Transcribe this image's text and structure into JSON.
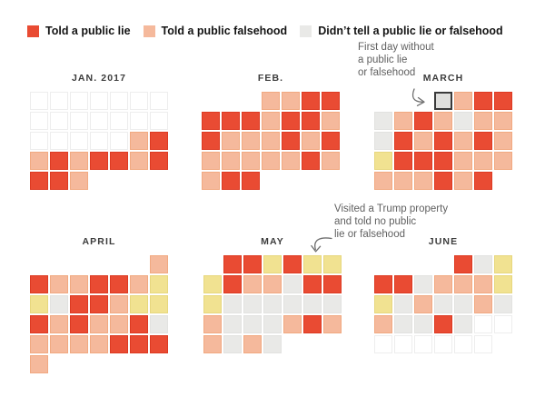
{
  "legend": {
    "items": [
      {
        "code": "L",
        "label": "Told a public lie"
      },
      {
        "code": "F",
        "label": "Told a public falsehood"
      },
      {
        "code": "N",
        "label": "Didn’t tell a public lie or falsehood"
      }
    ]
  },
  "annotations": {
    "march": {
      "lines": [
        "First day without",
        "a public lie",
        "or falsehood"
      ]
    },
    "may": {
      "lines": [
        "Visited a Trump property",
        "and told no public",
        "lie or falsehood"
      ]
    }
  },
  "colors": {
    "lie": "#e94b33",
    "lie_border": "#dd3a22",
    "falsehood": "#f5b99c",
    "falsehood_border": "#f1a981",
    "none": "#e9e9e7",
    "none_border": "#e2e2e0",
    "property": "#f1e291",
    "property_border": "#e7d77e",
    "empty": "#ffffff",
    "empty_border": "#ededed",
    "highlight_fill": "#dfdfdd",
    "highlight_border": "#3a3a3a"
  },
  "chart_data": {
    "type": "heatmap",
    "subtype": "calendar",
    "week_columns": "Sunday through Saturday",
    "cell_codes": {
      "L": "Told a public lie",
      "F": "Told a public falsehood",
      "N": "Didn’t tell a public lie or falsehood",
      "P": "Visited a Trump property and told no public lie or falsehood",
      "H": "Highlighted day: first day without a public lie or falsehood",
      "E": "Day shown with empty cell (outside tracked period)",
      "X": "No day in this calendar position"
    },
    "months": [
      {
        "id": "jan",
        "label": "JAN. 2017",
        "rows": [
          "EEEEEEE",
          "EEEEEEE",
          "EEEEEFL",
          "FLFLLFL",
          "LLFXXXX"
        ]
      },
      {
        "id": "feb",
        "label": "FEB.",
        "rows": [
          "XXXFFLL",
          "LLLFLLF",
          "LFFFLFL",
          "FFFFFLF",
          "FLLXXXX"
        ]
      },
      {
        "id": "mar",
        "label": "MARCH",
        "rows": [
          "XXXHFLL",
          "NFLFNFF",
          "NLFLFLF",
          "PLLLFFF",
          "FFFLFLX"
        ]
      },
      {
        "id": "apr",
        "label": "APRIL",
        "rows": [
          "XXXXXXF",
          "LFFLLFP",
          "PNLLFPP",
          "LFLFFLN",
          "FFFFLLL",
          "FXXXXXX"
        ]
      },
      {
        "id": "may",
        "label": "MAY",
        "rows": [
          "XLLPLPP",
          "PLFFNLL",
          "PNNNNNN",
          "FNNNFLF",
          "FNFNXXX"
        ]
      },
      {
        "id": "jun",
        "label": "JUNE",
        "rows": [
          "XXXXLNP",
          "LLNFFFP",
          "PNFNNFN",
          "FNNLNEE",
          "EEEEEEX"
        ]
      }
    ]
  }
}
